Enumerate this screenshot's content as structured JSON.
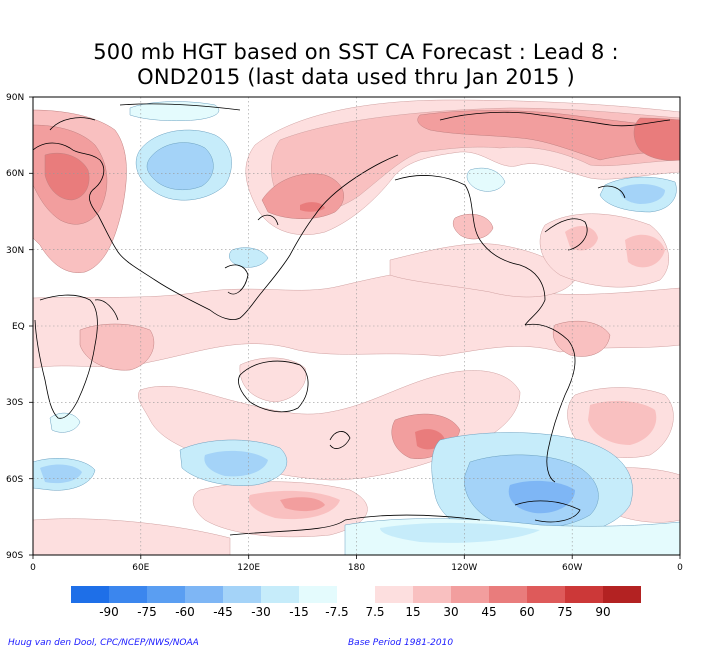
{
  "title": {
    "line1": "500 mb HGT based on SST CA Forecast : Lead 8 :",
    "line2": "OND2015 (last data used thru Jan 2015 )"
  },
  "axes": {
    "lat_labels": [
      "90N",
      "60N",
      "30N",
      "EQ",
      "30S",
      "60S",
      "90S"
    ],
    "lon_labels": [
      "0",
      "60E",
      "120E",
      "180",
      "120W",
      "60W",
      "0"
    ]
  },
  "colorbar": {
    "labels": [
      "-90",
      "-75",
      "-60",
      "-45",
      "-30",
      "-15",
      "-7.5",
      "7.5",
      "15",
      "30",
      "45",
      "60",
      "75",
      "90"
    ],
    "colors": [
      "#1e6fe8",
      "#3b86ee",
      "#5a9ef2",
      "#7eb6f5",
      "#a4d3f8",
      "#c6ecfa",
      "#e4fbfd",
      "#ffffff",
      "#fddfdf",
      "#f9c0c0",
      "#f29e9e",
      "#e97c7c",
      "#de5a5a",
      "#cc3838",
      "#b32222"
    ]
  },
  "credits": {
    "left": "Huug van den Dool, CPC/NCEP/NWS/NOAA",
    "right": "Base Period 1981-2010"
  }
}
